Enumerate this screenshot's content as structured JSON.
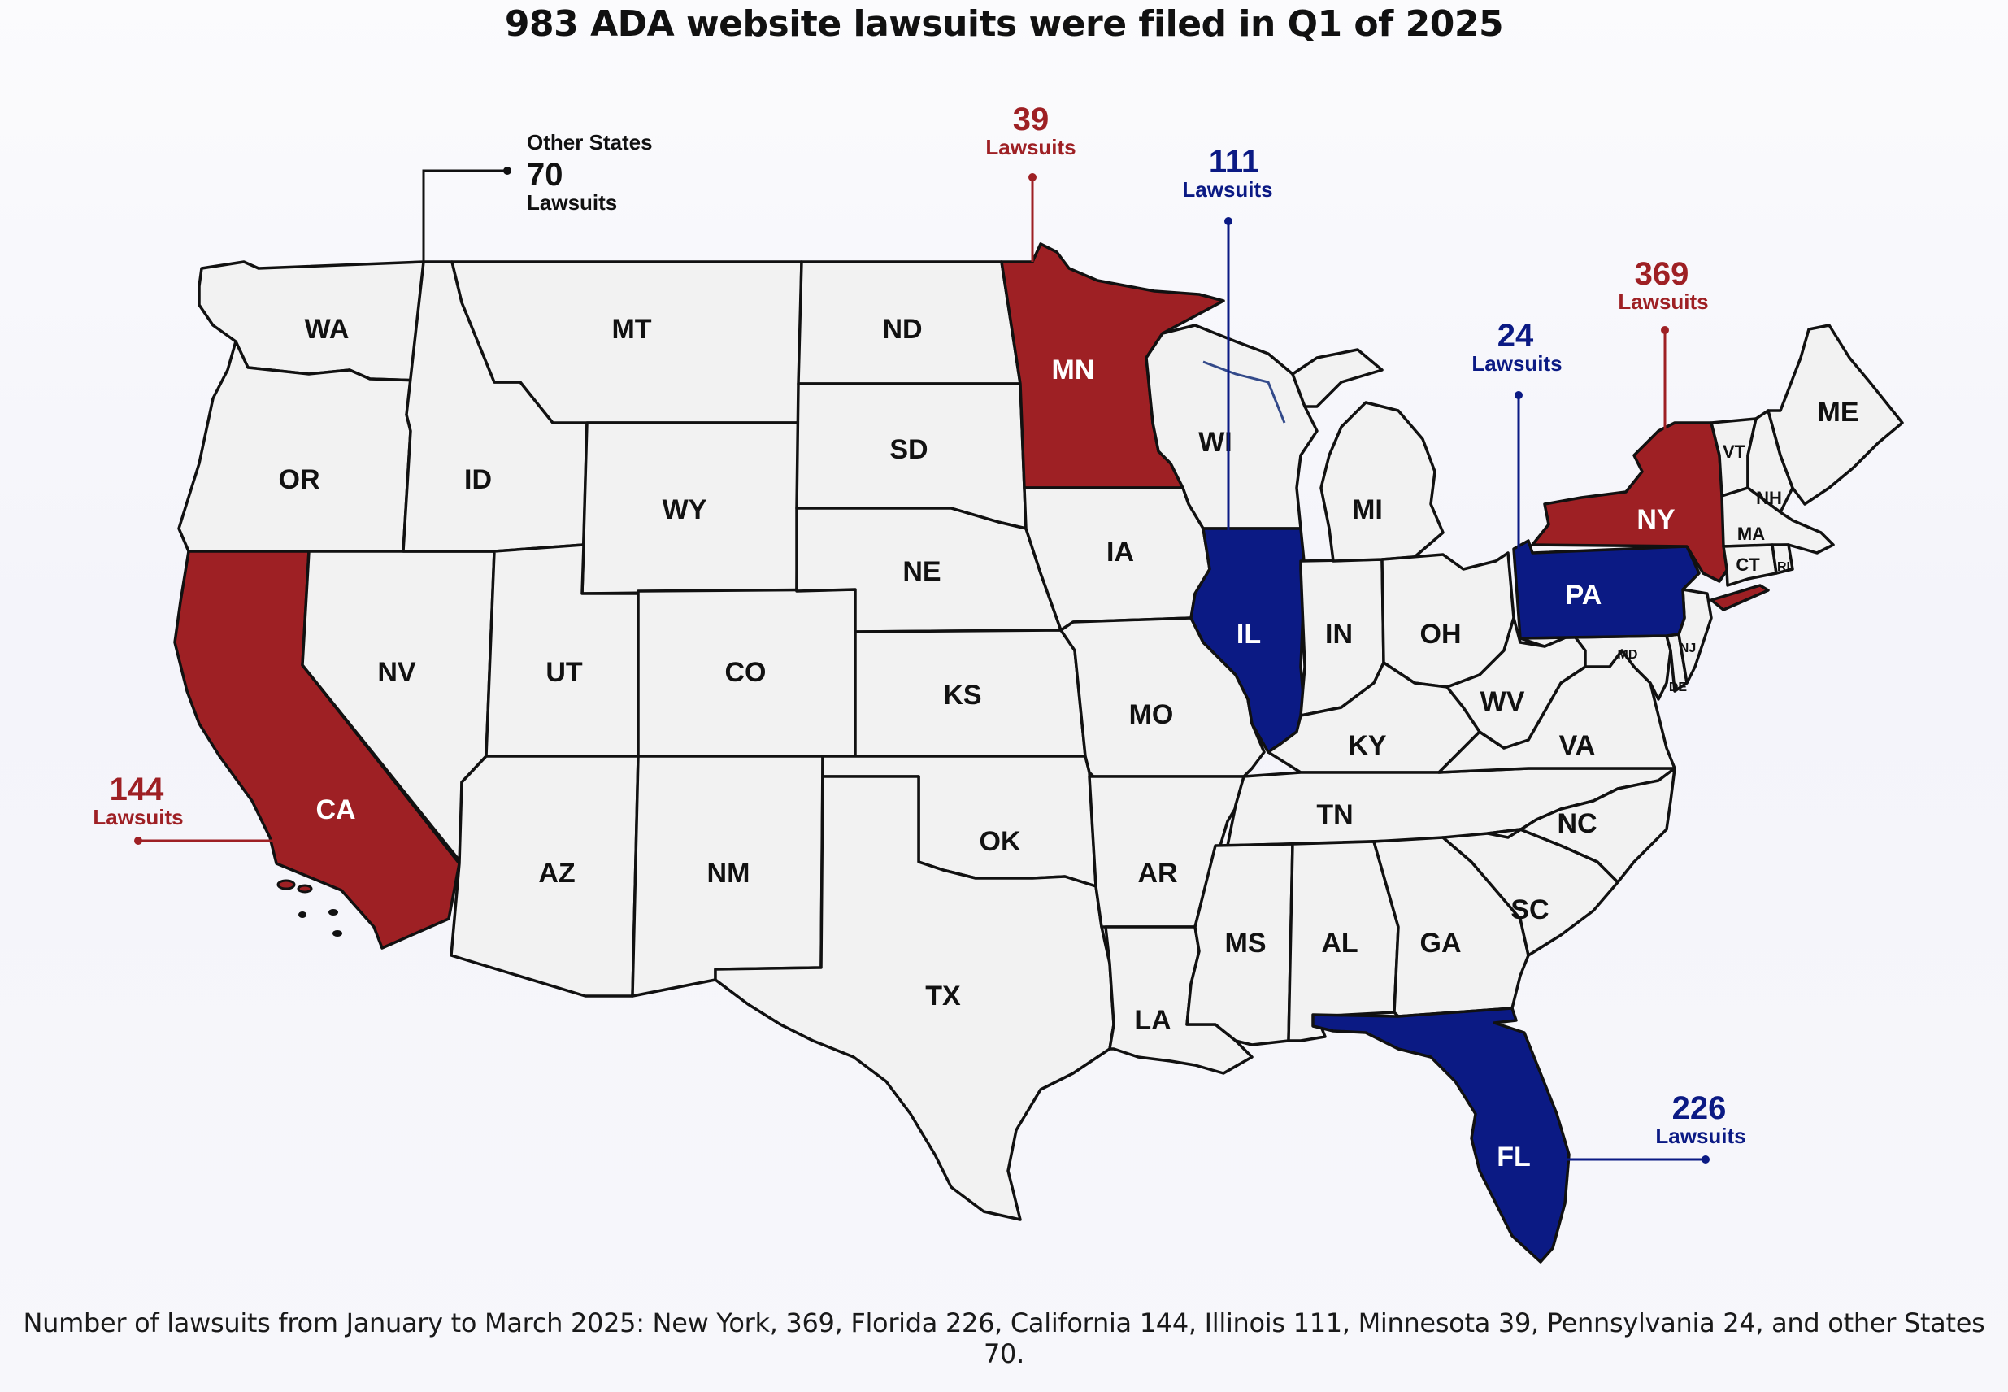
{
  "title": "983 ADA website lawsuits were filed in Q1 of 2025",
  "caption": "Number of lawsuits from January to March 2025: New York, 369, Florida 226, California 144, Illinois 111, Minnesota 39, Pennsylvania 24, and other States 70.",
  "colors": {
    "red": "#9e2024",
    "blue": "#0b1a84",
    "neutral": "#f2f2f2",
    "border": "#111111"
  },
  "states": {
    "WA": "WA",
    "OR": "OR",
    "CA": "CA",
    "ID": "ID",
    "NV": "NV",
    "MT": "MT",
    "WY": "WY",
    "UT": "UT",
    "AZ": "AZ",
    "CO": "CO",
    "NM": "NM",
    "ND": "ND",
    "SD": "SD",
    "NE": "NE",
    "KS": "KS",
    "OK": "OK",
    "TX": "TX",
    "MN": "MN",
    "IA": "IA",
    "MO": "MO",
    "AR": "AR",
    "LA": "LA",
    "WI": "WI",
    "IL": "IL",
    "MI": "MI",
    "IN": "IN",
    "OH": "OH",
    "KY": "KY",
    "TN": "TN",
    "MS": "MS",
    "AL": "AL",
    "GA": "GA",
    "FL": "FL",
    "SC": "SC",
    "NC": "NC",
    "VA": "VA",
    "WV": "WV",
    "PA": "PA",
    "NY": "NY",
    "VT": "VT",
    "NH": "NH",
    "ME": "ME",
    "MA": "MA",
    "CT": "CT",
    "RI": "RI",
    "NJ": "NJ",
    "DE": "DE",
    "MD": "MD"
  },
  "callouts": {
    "ca": {
      "count": "144",
      "unit": "Lawsuits"
    },
    "mn": {
      "count": "39",
      "unit": "Lawsuits"
    },
    "il": {
      "count": "111",
      "unit": "Lawsuits"
    },
    "pa": {
      "count": "24",
      "unit": "Lawsuits"
    },
    "ny": {
      "count": "369",
      "unit": "Lawsuits"
    },
    "fl": {
      "count": "226",
      "unit": "Lawsuits"
    },
    "other": {
      "heading": "Other States",
      "count": "70",
      "unit": "Lawsuits"
    }
  }
}
